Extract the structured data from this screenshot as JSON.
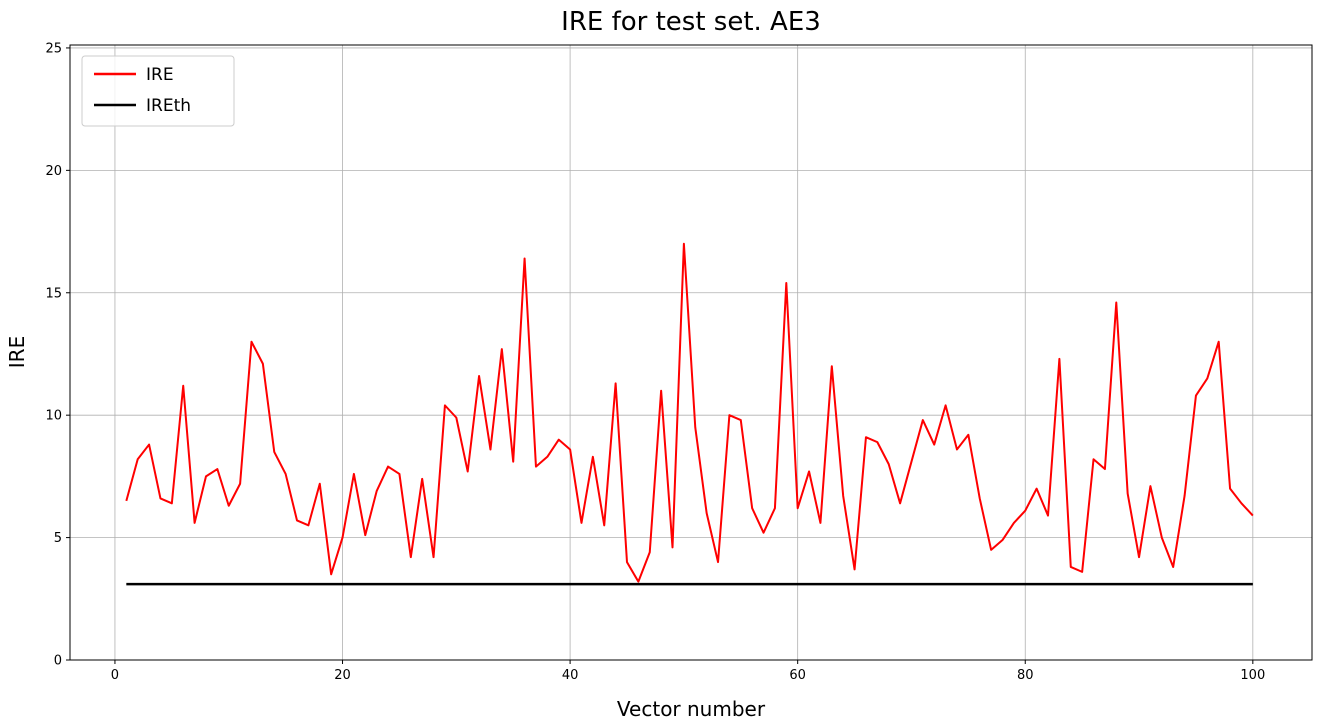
{
  "chart_data": {
    "type": "line",
    "title": "IRE for test set. AE3",
    "xlabel": "Vector number",
    "ylabel": "IRE",
    "xlim": [
      -3.95,
      105.2
    ],
    "ylim": [
      0,
      25.12
    ],
    "xticks": [
      0,
      20,
      40,
      60,
      80,
      100
    ],
    "yticks": [
      0,
      5,
      10,
      15,
      20,
      25
    ],
    "grid": true,
    "legend_position": "upper left",
    "x_start": 1,
    "x_step": 1,
    "series": [
      {
        "name": "IRE",
        "color": "#ff0000",
        "values": [
          6.5,
          8.2,
          8.8,
          6.6,
          6.4,
          11.2,
          5.6,
          7.5,
          7.8,
          6.3,
          7.2,
          13.0,
          12.1,
          8.5,
          7.6,
          5.7,
          5.5,
          7.2,
          3.5,
          5.0,
          7.6,
          5.1,
          6.9,
          7.9,
          7.6,
          4.2,
          7.4,
          4.2,
          10.4,
          9.9,
          7.7,
          11.6,
          8.6,
          12.7,
          8.1,
          16.4,
          7.9,
          8.3,
          9.0,
          8.6,
          5.6,
          8.3,
          5.5,
          11.3,
          4.0,
          3.2,
          4.4,
          11.0,
          4.6,
          17.0,
          9.5,
          6.0,
          4.0,
          10.0,
          9.8,
          6.2,
          5.2,
          6.2,
          15.4,
          6.2,
          7.7,
          5.6,
          12.0,
          6.7,
          3.7,
          9.1,
          8.9,
          8.0,
          6.4,
          8.1,
          9.8,
          8.8,
          10.4,
          8.6,
          9.2,
          6.6,
          4.5,
          4.9,
          5.6,
          6.1,
          7.0,
          5.9,
          12.3,
          3.8,
          3.6,
          8.2,
          7.8,
          14.6,
          6.8,
          4.2,
          7.1,
          5.0,
          3.8,
          6.7,
          10.8,
          11.5,
          13.0,
          7.0,
          6.4,
          5.9
        ]
      },
      {
        "name": "IREth",
        "color": "#000000",
        "constant": 3.1,
        "x_range": [
          1,
          100
        ]
      }
    ]
  }
}
